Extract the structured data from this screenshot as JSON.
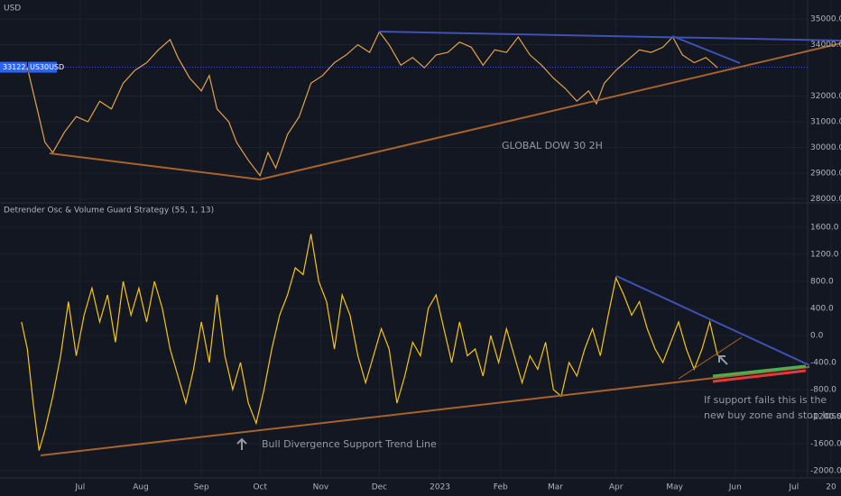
{
  "chart_data": [
    {
      "type": "line",
      "currency": "USD",
      "title": "GLOBAL DOW 30 2H",
      "symbol": "US30USD",
      "last_value": 33122,
      "last_value_label": "33122.0",
      "color": "#e0a24a",
      "x": [
        3,
        8,
        12,
        16,
        22,
        28,
        34,
        40,
        46,
        52,
        58,
        64,
        70,
        76,
        80,
        86,
        92,
        96,
        100,
        106,
        110,
        116,
        122,
        126,
        130,
        136,
        142,
        148,
        154,
        160,
        166,
        172,
        178,
        183,
        188,
        194,
        200,
        206,
        212,
        218,
        224,
        230,
        236,
        242,
        248,
        254,
        260,
        266,
        272,
        278,
        284,
        290,
        294,
        298,
        304,
        310,
        316,
        322,
        328,
        333,
        338,
        344,
        350,
        356
      ],
      "values": [
        33100,
        31500,
        30200,
        29800,
        30600,
        31200,
        31000,
        31800,
        31500,
        32500,
        33000,
        33300,
        33800,
        34200,
        33500,
        32700,
        32200,
        32800,
        31500,
        31000,
        30200,
        29500,
        28900,
        29800,
        29200,
        30500,
        31200,
        32500,
        32800,
        33300,
        33600,
        34000,
        33700,
        34500,
        34000,
        33200,
        33500,
        33100,
        33600,
        33700,
        34100,
        33900,
        33200,
        33800,
        33700,
        34300,
        33600,
        33200,
        32700,
        32300,
        31800,
        32200,
        31700,
        32500,
        33000,
        33400,
        33800,
        33700,
        33900,
        34300,
        33600,
        33300,
        33500,
        33100
      ],
      "xlim": [
        -11,
        402
      ],
      "ylim": [
        27840,
        35740
      ],
      "yticks": [
        {
          "value": 35000,
          "label": "35000.0"
        },
        {
          "value": 34000,
          "label": "34000.0"
        },
        {
          "value": 32000,
          "label": "32000.0"
        },
        {
          "value": 31000,
          "label": "31000.0"
        },
        {
          "value": 30000,
          "label": "30000.0"
        },
        {
          "value": 29000,
          "label": "29000.0"
        },
        {
          "value": 28000,
          "label": "28000.0"
        }
      ]
    },
    {
      "type": "line",
      "title": "Detrender Osc & Volume Guard Strategy (55, 1, 13)",
      "color": "#f5c518",
      "annotations": [
        "Bull Divergence Support Trend Line"
      ],
      "note_lines": [
        "If support fails this is the",
        "new buy zone and stop loss"
      ],
      "x": [
        0,
        3,
        6,
        9,
        12,
        16,
        20,
        24,
        28,
        32,
        36,
        40,
        44,
        48,
        52,
        56,
        60,
        64,
        68,
        72,
        76,
        80,
        84,
        88,
        92,
        96,
        100,
        104,
        108,
        112,
        116,
        120,
        124,
        128,
        132,
        136,
        140,
        144,
        148,
        152,
        156,
        160,
        164,
        168,
        172,
        176,
        180,
        184,
        188,
        192,
        196,
        200,
        204,
        208,
        212,
        216,
        220,
        224,
        228,
        232,
        236,
        240,
        244,
        248,
        252,
        256,
        260,
        264,
        268,
        272,
        276,
        280,
        284,
        288,
        292,
        296,
        300,
        304,
        308,
        312,
        316,
        320,
        324,
        328,
        332,
        336,
        340,
        344,
        348,
        352,
        356
      ],
      "values": [
        200,
        -200,
        -1000,
        -1700,
        -1400,
        -900,
        -300,
        500,
        -300,
        300,
        700,
        200,
        600,
        -100,
        800,
        300,
        700,
        200,
        800,
        400,
        -200,
        -600,
        -1000,
        -500,
        200,
        -400,
        600,
        -300,
        -800,
        -400,
        -1000,
        -1300,
        -800,
        -200,
        300,
        600,
        1000,
        900,
        1500,
        800,
        500,
        -200,
        600,
        300,
        -300,
        -700,
        -300,
        100,
        -200,
        -1000,
        -600,
        -100,
        -300,
        400,
        600,
        100,
        -400,
        200,
        -300,
        -200,
        -600,
        0,
        -400,
        100,
        -300,
        -700,
        -300,
        -500,
        -100,
        -800,
        -900,
        -400,
        -600,
        -200,
        100,
        -300,
        300,
        850,
        600,
        300,
        500,
        100,
        -200,
        -400,
        -100,
        200,
        -200,
        -500,
        -200,
        200,
        -300
      ],
      "xlim": [
        -11,
        402
      ],
      "ylim": [
        -2107,
        1960
      ],
      "yticks": [
        {
          "value": 1600,
          "label": "1600.0"
        },
        {
          "value": 1200,
          "label": "1200.0"
        },
        {
          "value": 800,
          "label": "800.0"
        },
        {
          "value": 400,
          "label": "400.0"
        },
        {
          "value": 0,
          "label": "0.0"
        },
        {
          "value": -400,
          "label": "-400.0"
        },
        {
          "value": -800,
          "label": "-800.0"
        },
        {
          "value": -1200,
          "label": "-1200.0"
        },
        {
          "value": -1600,
          "label": "-1600.0"
        },
        {
          "value": -2000,
          "label": "-2000.0"
        }
      ],
      "xticks": [
        {
          "value": 30,
          "label": "Jul"
        },
        {
          "value": 61,
          "label": "Aug"
        },
        {
          "value": 92,
          "label": "Sep"
        },
        {
          "value": 122,
          "label": "Oct"
        },
        {
          "value": 153,
          "label": "Nov"
        },
        {
          "value": 183,
          "label": "Dec"
        },
        {
          "value": 214,
          "label": "2023"
        },
        {
          "value": 245,
          "label": "Feb"
        },
        {
          "value": 273,
          "label": "Mar"
        },
        {
          "value": 304,
          "label": "Apr"
        },
        {
          "value": 334,
          "label": "May"
        },
        {
          "value": 365,
          "label": "Jun"
        },
        {
          "value": 395,
          "label": "Jul"
        },
        {
          "value": 414,
          "label": "20"
        }
      ]
    }
  ]
}
